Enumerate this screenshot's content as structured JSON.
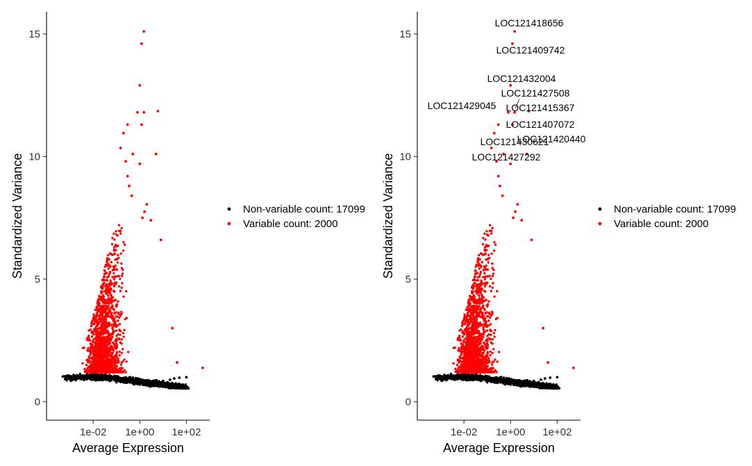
{
  "chart_data": [
    {
      "type": "scatter",
      "xlabel": "Average Expression",
      "ylabel": "Standardized Variance",
      "xscale": "log10",
      "xlim": [
        0.0001,
        1000
      ],
      "ylim": [
        -0.75,
        15.9
      ],
      "x_ticks": [
        0.01,
        1,
        100
      ],
      "x_tick_labels": [
        "1e-02",
        "1e+00",
        "1e+02"
      ],
      "y_ticks": [
        0,
        5,
        10,
        15
      ],
      "y_tick_labels": [
        "0",
        "5",
        "10",
        "15"
      ],
      "grid": false,
      "legend_position": "right",
      "legend": [
        {
          "label": "Non-variable count: 17099",
          "color": "#000000"
        },
        {
          "label": "Variable count: 2000",
          "color": "#ff0000"
        }
      ],
      "series": [
        {
          "name": "Non-variable count: 17099",
          "color": "#000000",
          "points": [
            [
              0.0005,
              1.03
            ],
            [
              0.001,
              1.0
            ],
            [
              0.002,
              0.98
            ],
            [
              0.003,
              1.02
            ],
            [
              0.005,
              0.95
            ],
            [
              0.008,
              1.05
            ],
            [
              0.01,
              0.9
            ],
            [
              0.02,
              0.92
            ],
            [
              0.05,
              1.0
            ],
            [
              0.1,
              0.85
            ],
            [
              0.2,
              0.8
            ],
            [
              0.5,
              0.75
            ],
            [
              1,
              0.7
            ],
            [
              2,
              0.72
            ],
            [
              5,
              0.8
            ],
            [
              10,
              0.85
            ],
            [
              20,
              0.9
            ],
            [
              30,
              0.95
            ],
            [
              50,
              0.98
            ],
            [
              100,
              1.0
            ]
          ]
        },
        {
          "name": "Variable count: 2000",
          "color": "#ff0000",
          "points": [
            [
              1.5,
              15.1
            ],
            [
              1.2,
              14.6
            ],
            [
              1.0,
              12.9
            ],
            [
              0.8,
              11.8
            ],
            [
              1.5,
              11.8
            ],
            [
              6,
              11.85
            ],
            [
              0.3,
              11.3
            ],
            [
              1.2,
              11.3
            ],
            [
              0.2,
              10.95
            ],
            [
              0.15,
              10.35
            ],
            [
              0.5,
              10.1
            ],
            [
              5,
              10.1
            ],
            [
              0.25,
              9.8
            ],
            [
              1.0,
              9.7
            ],
            [
              0.3,
              9.2
            ],
            [
              0.35,
              8.8
            ],
            [
              0.45,
              8.4
            ],
            [
              2,
              8.05
            ],
            [
              1.6,
              7.75
            ],
            [
              1.3,
              7.5
            ],
            [
              3,
              7.4
            ],
            [
              8,
              6.6
            ],
            [
              25,
              3.0
            ],
            [
              40,
              1.6
            ],
            [
              500,
              1.38
            ]
          ]
        }
      ]
    },
    {
      "type": "scatter",
      "xlabel": "Average Expression",
      "ylabel": "Standardized Variance",
      "xscale": "log10",
      "xlim": [
        0.0001,
        1000
      ],
      "ylim": [
        -0.75,
        15.9
      ],
      "x_ticks": [
        0.01,
        1,
        100
      ],
      "x_tick_labels": [
        "1e-02",
        "1e+00",
        "1e+02"
      ],
      "y_ticks": [
        0,
        5,
        10,
        15
      ],
      "y_tick_labels": [
        "0",
        "5",
        "10",
        "15"
      ],
      "grid": false,
      "legend_position": "right",
      "legend": [
        {
          "label": "Non-variable count: 17099",
          "color": "#000000"
        },
        {
          "label": "Variable count: 2000",
          "color": "#ff0000"
        }
      ],
      "annotations": [
        {
          "text": "LOC121418656",
          "x": 1.5,
          "y": 15.1
        },
        {
          "text": "LOC121409742",
          "x": 1.2,
          "y": 14.6
        },
        {
          "text": "LOC121432004",
          "x": 1.0,
          "y": 12.9
        },
        {
          "text": "LOC121427508",
          "x": 0.8,
          "y": 11.8
        },
        {
          "text": "LOC121429045",
          "x": 0.3,
          "y": 11.3
        },
        {
          "text": "LOC121415367",
          "x": 1.5,
          "y": 11.8
        },
        {
          "text": "LOC121407072",
          "x": 1.2,
          "y": 11.3
        },
        {
          "text": "LOC121420440",
          "x": 5,
          "y": 10.1
        },
        {
          "text": "LOC121430621",
          "x": 0.5,
          "y": 10.1
        },
        {
          "text": "LOC121427292",
          "x": 0.15,
          "y": 10.35
        }
      ],
      "series": [
        {
          "name": "Non-variable count: 17099",
          "color": "#000000",
          "points": [
            [
              0.0005,
              1.03
            ],
            [
              0.001,
              1.0
            ],
            [
              0.002,
              0.98
            ],
            [
              0.003,
              1.02
            ],
            [
              0.005,
              0.95
            ],
            [
              0.008,
              1.05
            ],
            [
              0.01,
              0.9
            ],
            [
              0.02,
              0.92
            ],
            [
              0.05,
              1.0
            ],
            [
              0.1,
              0.85
            ],
            [
              0.2,
              0.8
            ],
            [
              0.5,
              0.75
            ],
            [
              1,
              0.7
            ],
            [
              2,
              0.72
            ],
            [
              5,
              0.8
            ],
            [
              10,
              0.85
            ],
            [
              20,
              0.9
            ],
            [
              30,
              0.95
            ],
            [
              50,
              0.98
            ],
            [
              100,
              1.0
            ]
          ]
        },
        {
          "name": "Variable count: 2000",
          "color": "#ff0000",
          "points": [
            [
              1.5,
              15.1
            ],
            [
              1.2,
              14.6
            ],
            [
              1.0,
              12.9
            ],
            [
              0.8,
              11.8
            ],
            [
              1.5,
              11.8
            ],
            [
              6,
              11.85
            ],
            [
              0.3,
              11.3
            ],
            [
              1.2,
              11.3
            ],
            [
              0.2,
              10.95
            ],
            [
              0.15,
              10.35
            ],
            [
              0.5,
              10.1
            ],
            [
              5,
              10.1
            ],
            [
              0.25,
              9.8
            ],
            [
              1.0,
              9.7
            ],
            [
              0.3,
              9.2
            ],
            [
              0.35,
              8.8
            ],
            [
              0.45,
              8.4
            ],
            [
              2,
              8.05
            ],
            [
              1.6,
              7.75
            ],
            [
              1.3,
              7.5
            ],
            [
              3,
              7.4
            ],
            [
              8,
              6.6
            ],
            [
              25,
              3.0
            ],
            [
              40,
              1.6
            ],
            [
              500,
              1.38
            ]
          ]
        }
      ]
    }
  ]
}
